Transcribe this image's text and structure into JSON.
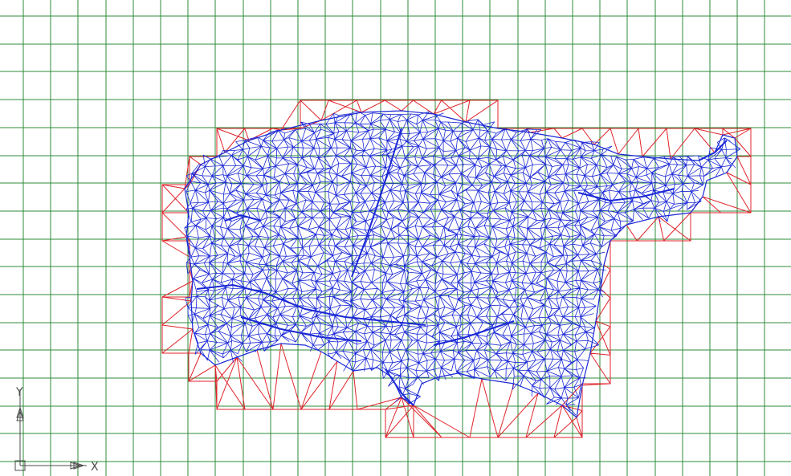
{
  "viewport": {
    "background_color": "#ffffff",
    "grid_color": "#2e8b3a",
    "boundary_color": "#e0242b",
    "mesh_color": "#1a28d6",
    "ucs_color": "#4b4b4b"
  },
  "ucs_icon": {
    "x_label": "X",
    "y_label": "Y"
  }
}
